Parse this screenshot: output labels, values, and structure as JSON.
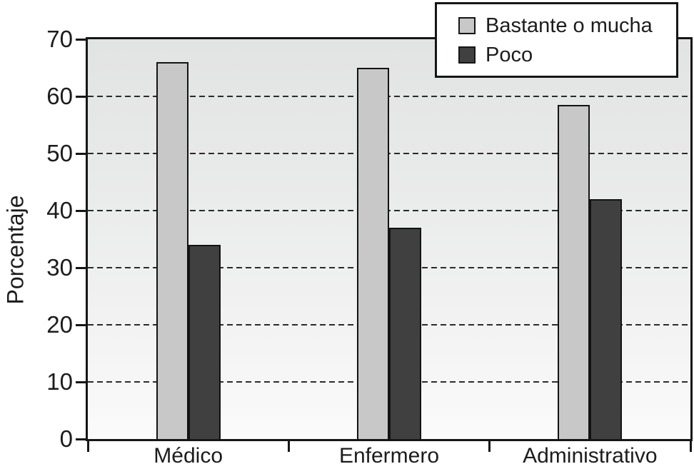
{
  "chart_data": {
    "type": "bar",
    "categories": [
      "Médico",
      "Enfermero",
      "Administrativo"
    ],
    "series": [
      {
        "name": "Bastante o mucha",
        "color": "#c8c8c8",
        "values": [
          66,
          65,
          58.5
        ]
      },
      {
        "name": "Poco",
        "color": "#404040",
        "values": [
          34,
          37,
          42
        ]
      }
    ],
    "ylabel": "Porcentaje",
    "ylim": [
      0,
      70
    ],
    "yticks": [
      0,
      10,
      20,
      30,
      40,
      50,
      60,
      70
    ],
    "grid": "horizontal-dashed",
    "legend_position": "top-right",
    "colors": {
      "axis": "#161616",
      "plot_bg_top": "#e2e3e3",
      "plot_bg_bottom": "#fbfbfb"
    }
  }
}
